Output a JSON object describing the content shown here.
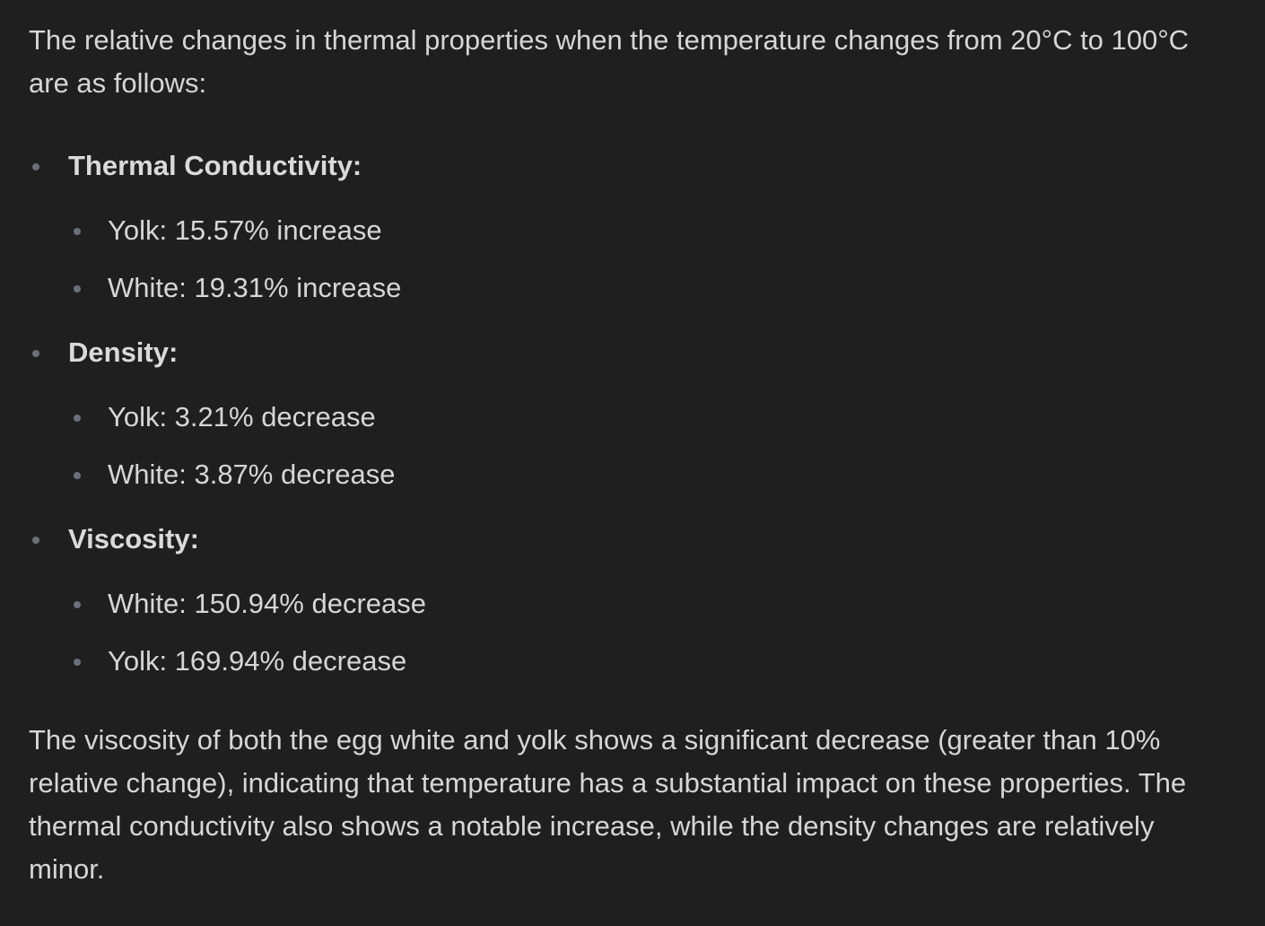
{
  "intro": "The relative changes in thermal properties when the temperature changes from 20°C to 100°C are as follows:",
  "categories": [
    {
      "title": "Thermal Conductivity:",
      "items": [
        "Yolk: 15.57% increase",
        "White: 19.31% increase"
      ]
    },
    {
      "title": "Density:",
      "items": [
        "Yolk: 3.21% decrease",
        "White: 3.87% decrease"
      ]
    },
    {
      "title": "Viscosity:",
      "items": [
        "White: 150.94% decrease",
        "Yolk: 169.94% decrease"
      ]
    }
  ],
  "conclusion": "The viscosity of both the egg white and yolk shows a significant decrease (greater than 10% relative change), indicating that temperature has a substantial impact on these properties. The thermal conductivity also shows a notable increase, while the density changes are relatively minor.",
  "colors": {
    "background": "#1f1f1f",
    "text": "#d6d6d6",
    "bullet": "#6b6f78"
  }
}
